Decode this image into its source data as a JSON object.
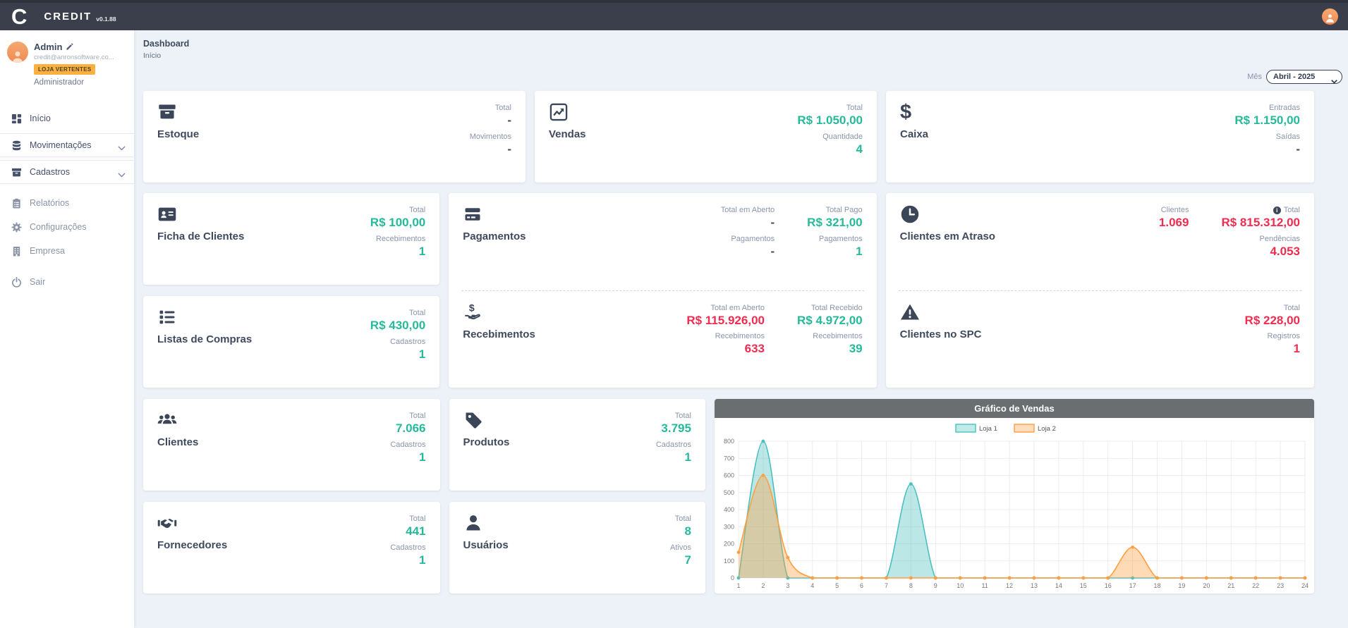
{
  "app": {
    "logo_letter": "C",
    "brand": "CREDIT",
    "version": "v0.1.88"
  },
  "user": {
    "name": "Admin",
    "email": "credit@anronsoftware.co...",
    "store_badge": "LOJA VERTENTES",
    "role": "Administrador"
  },
  "sidebar": {
    "items": [
      {
        "label": "Início",
        "icon": "grid-icon"
      },
      {
        "label": "Movimentações",
        "icon": "database-icon",
        "expandable": true
      },
      {
        "label": "Cadastros",
        "icon": "archive-icon",
        "expandable": true
      },
      {
        "label": "Relatórios",
        "icon": "clipboard-icon"
      },
      {
        "label": "Configurações",
        "icon": "gear-icon"
      },
      {
        "label": "Empresa",
        "icon": "building-icon"
      },
      {
        "label": "Sair",
        "icon": "power-icon"
      }
    ]
  },
  "header": {
    "title": "Dashboard",
    "subtitle": "Início"
  },
  "filters": {
    "month_label": "Mês",
    "month_value": "Abril - 2025"
  },
  "colors": {
    "green": "#26b99a",
    "red": "#ee2d50",
    "dark_value": "#3f4a5c",
    "badge_orange": "#fbb03f",
    "avatar_orange": "#ef8b55",
    "topbar": "#3a3f4b",
    "chart_header": "#6b6e70"
  },
  "cards": {
    "estoque": {
      "title": "Estoque",
      "icon": "box-icon",
      "stats": [
        {
          "label": "Total",
          "value": "-"
        },
        {
          "label": "Movimentos",
          "value": "-"
        }
      ]
    },
    "vendas": {
      "title": "Vendas",
      "icon": "chart-line-icon",
      "stats": [
        {
          "label": "Total",
          "value": "R$ 1.050,00"
        },
        {
          "label": "Quantidade",
          "value": "4"
        }
      ]
    },
    "caixa": {
      "title": "Caixa",
      "icon": "dollar-icon",
      "stats": [
        {
          "label": "Entradas",
          "value": "R$ 1.150,00"
        },
        {
          "label": "Saídas",
          "value": "-"
        }
      ]
    },
    "ficha_de_clientes": {
      "title": "Ficha de Clientes",
      "icon": "id-card-icon",
      "stats": [
        {
          "label": "Total",
          "value": "R$ 100,00"
        },
        {
          "label": "Recebimentos",
          "value": "1"
        }
      ]
    },
    "listas_de_compras": {
      "title": "Listas de Compras",
      "icon": "list-icon",
      "stats": [
        {
          "label": "Total",
          "value": "R$ 430,00"
        },
        {
          "label": "Cadastros",
          "value": "1"
        }
      ]
    },
    "pagamentos": {
      "title": "Pagamentos",
      "icon": "credit-card-icon",
      "col1": [
        {
          "label": "Total em Aberto",
          "value": "-"
        },
        {
          "label": "Pagamentos",
          "value": "-"
        }
      ],
      "col2": [
        {
          "label": "Total Pago",
          "value": "R$ 321,00"
        },
        {
          "label": "Pagamentos",
          "value": "1"
        }
      ]
    },
    "recebimentos": {
      "title": "Recebimentos",
      "icon": "hand-dollar-icon",
      "col1": [
        {
          "label": "Total em Aberto",
          "value": "R$ 115.926,00"
        },
        {
          "label": "Recebimentos",
          "value": "633"
        }
      ],
      "col2": [
        {
          "label": "Total Recebido",
          "value": "R$ 4.972,00"
        },
        {
          "label": "Recebimentos",
          "value": "39"
        }
      ]
    },
    "clientes_em_atraso": {
      "title": "Clientes em Atraso",
      "icon": "clock-icon",
      "col1": [
        {
          "label": "Clientes",
          "value": "1.069"
        }
      ],
      "col2": [
        {
          "label": "Total",
          "value": "R$ 815.312,00"
        },
        {
          "label": "Pendências",
          "value": "4.053"
        }
      ]
    },
    "clientes_no_spc": {
      "title": "Clientes no SPC",
      "icon": "warning-icon",
      "stats": [
        {
          "label": "Total",
          "value": "R$ 228,00"
        },
        {
          "label": "Registros",
          "value": "1"
        }
      ]
    },
    "clientes": {
      "title": "Clientes",
      "icon": "users-icon",
      "stats": [
        {
          "label": "Total",
          "value": "7.066"
        },
        {
          "label": "Cadastros",
          "value": "1"
        }
      ]
    },
    "produtos": {
      "title": "Produtos",
      "icon": "tag-icon",
      "stats": [
        {
          "label": "Total",
          "value": "3.795"
        },
        {
          "label": "Cadastros",
          "value": "1"
        }
      ]
    },
    "fornecedores": {
      "title": "Fornecedores",
      "icon": "handshake-icon",
      "stats": [
        {
          "label": "Total",
          "value": "441"
        },
        {
          "label": "Cadastros",
          "value": "1"
        }
      ]
    },
    "usuarios": {
      "title": "Usuários",
      "icon": "user-icon",
      "stats": [
        {
          "label": "Total",
          "value": "8"
        },
        {
          "label": "Ativos",
          "value": "7"
        }
      ]
    }
  },
  "chart_data": {
    "type": "line",
    "title": "Gráfico de Vendas",
    "x": [
      1,
      2,
      3,
      4,
      5,
      6,
      7,
      8,
      9,
      10,
      11,
      12,
      13,
      14,
      15,
      16,
      17,
      18,
      19,
      20,
      21,
      22,
      23,
      24
    ],
    "series": [
      {
        "name": "Loja 1",
        "color": "#4bc0c0",
        "values": [
          0,
          800,
          0,
          0,
          0,
          0,
          0,
          550,
          0,
          0,
          0,
          0,
          0,
          0,
          0,
          0,
          0,
          0,
          0,
          0,
          0,
          0,
          0,
          0
        ]
      },
      {
        "name": "Loja 2",
        "color": "#ff9f40",
        "values": [
          150,
          600,
          120,
          0,
          0,
          0,
          0,
          0,
          0,
          0,
          0,
          0,
          0,
          0,
          0,
          0,
          180,
          0,
          0,
          0,
          0,
          0,
          0,
          0
        ]
      }
    ],
    "ylim": [
      0,
      800
    ],
    "ytick_step": 100,
    "grid": true,
    "legend_position": "top",
    "smooth": true
  }
}
